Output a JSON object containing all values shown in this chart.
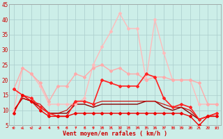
{
  "xlabel": "Vent moyen/en rafales ( km/h )",
  "xlim": [
    -0.5,
    23.5
  ],
  "ylim": [
    5,
    45
  ],
  "yticks": [
    5,
    10,
    15,
    20,
    25,
    30,
    35,
    40,
    45
  ],
  "xticks": [
    0,
    1,
    2,
    3,
    4,
    5,
    6,
    7,
    8,
    9,
    10,
    11,
    12,
    13,
    14,
    15,
    16,
    17,
    18,
    19,
    20,
    21,
    22,
    23
  ],
  "bg_color": "#cceee8",
  "grid_color": "#aacccc",
  "series": [
    {
      "y": [
        10,
        24,
        22,
        18,
        12,
        12,
        12,
        12,
        14,
        25,
        31,
        36,
        42,
        37,
        37,
        20,
        40,
        29,
        20,
        20,
        20,
        12,
        12,
        12
      ],
      "color": "#ffbbbb",
      "lw": 1.0,
      "marker": "D",
      "ms": 2.0
    },
    {
      "y": [
        17,
        24,
        22,
        19,
        13,
        18,
        18,
        22,
        21,
        24,
        25,
        23,
        24,
        22,
        22,
        20,
        21,
        21,
        20,
        20,
        20,
        19,
        12,
        12
      ],
      "color": "#ffaaaa",
      "lw": 1.0,
      "marker": "D",
      "ms": 2.0
    },
    {
      "y": [
        17,
        15,
        14,
        11,
        9,
        8,
        8,
        13,
        13,
        12,
        20,
        19,
        18,
        18,
        18,
        22,
        21,
        14,
        11,
        12,
        11,
        7,
        8,
        9
      ],
      "color": "#ff2222",
      "lw": 1.2,
      "marker": "D",
      "ms": 2.0
    },
    {
      "y": [
        9,
        15,
        13,
        10,
        8,
        8,
        8,
        9,
        9,
        9,
        9,
        9,
        9,
        9,
        9,
        9,
        9,
        9,
        9,
        9,
        8,
        5,
        8,
        8
      ],
      "color": "#ee0000",
      "lw": 1.0,
      "marker": "D",
      "ms": 2.0
    },
    {
      "y": [
        10,
        14,
        13,
        11,
        9,
        9,
        9,
        12,
        12,
        11,
        12,
        12,
        12,
        12,
        12,
        13,
        13,
        11,
        10,
        11,
        9,
        7,
        8,
        8
      ],
      "color": "#880000",
      "lw": 1.0,
      "marker": null,
      "ms": 0
    },
    {
      "y": [
        10,
        14,
        13,
        12,
        9,
        9,
        10,
        13,
        13,
        12,
        13,
        13,
        13,
        13,
        13,
        13,
        13,
        12,
        11,
        11,
        10,
        7,
        8,
        9
      ],
      "color": "#cc0000",
      "lw": 0.8,
      "marker": null,
      "ms": 0
    }
  ],
  "arrow_angles": [
    20,
    30,
    20,
    40,
    60,
    60,
    60,
    60,
    60,
    60,
    60,
    60,
    60,
    60,
    60,
    80,
    80,
    80,
    80,
    80,
    80,
    80,
    80,
    20
  ],
  "arrow_color": "#ff2222"
}
